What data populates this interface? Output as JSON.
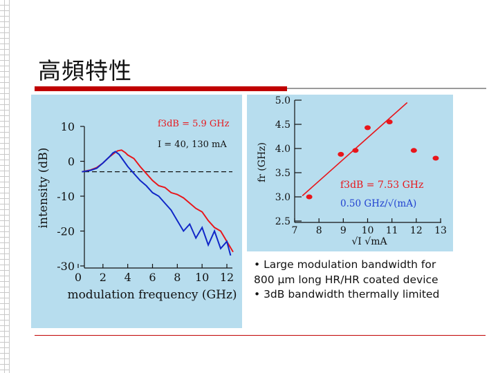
{
  "slide": {
    "title": "高頻特性",
    "bullets": [
      "• Large modulation bandwidth for 800 μm long HR/HR coated device",
      "• 3dB bandwidth thermally limited"
    ]
  },
  "colors": {
    "red_line": "#e8161b",
    "blue_line": "#1027c7",
    "panel_bg": "#b7ddee",
    "annotation_red": "#e8161b",
    "annotation_blue": "#2040d0"
  },
  "chart_data": [
    {
      "type": "line",
      "title": "",
      "xlabel": "modulation frequency (GHz)",
      "ylabel": "intensity (dB)",
      "xlim": [
        0,
        13
      ],
      "ylim": [
        -30,
        12
      ],
      "x_ticks": [
        "0",
        "2",
        "4",
        "6",
        "8",
        "10",
        "12"
      ],
      "y_ticks": [
        "10",
        "0",
        "-10",
        "-20",
        "-30"
      ],
      "annotations": {
        "f3db": "f3dB = 5.9 GHz",
        "current": "I = 40, 130 mA"
      },
      "reference_line": {
        "y": -3,
        "style": "dashed"
      },
      "series": [
        {
          "name": "130 mA",
          "color": "red",
          "x": [
            0.3,
            1,
            1.5,
            2,
            2.5,
            3,
            3.2,
            3.5,
            3.8,
            4,
            4.5,
            5,
            5.5,
            6,
            6.5,
            7,
            7.5,
            8,
            8.5,
            9,
            9.5,
            10,
            10.5,
            11,
            11.5,
            12,
            12.5
          ],
          "y": [
            -3,
            -2.5,
            -1.8,
            -0.5,
            1.2,
            2.6,
            3.0,
            3.2,
            2.5,
            1.8,
            0.8,
            -1.5,
            -3.5,
            -5.5,
            -7,
            -7.5,
            -9,
            -9.5,
            -10.5,
            -12,
            -13.5,
            -14.5,
            -17,
            -19,
            -20,
            -23,
            -26
          ]
        },
        {
          "name": "40 mA",
          "color": "blue",
          "x": [
            0.3,
            1,
            1.5,
            2,
            2.5,
            2.8,
            3,
            3.3,
            3.6,
            4,
            4.5,
            5,
            5.5,
            6,
            6.5,
            7,
            7.5,
            8,
            8.5,
            9,
            9.5,
            10,
            10.5,
            11,
            11.5,
            12,
            12.3
          ],
          "y": [
            -3,
            -2.6,
            -2,
            -0.5,
            1.2,
            2.4,
            2.8,
            2.0,
            0.5,
            -1.5,
            -3.5,
            -5.5,
            -7,
            -9,
            -10,
            -12,
            -14,
            -17,
            -20,
            -18,
            -22,
            -19,
            -24,
            -20,
            -25,
            -23,
            -27
          ]
        }
      ]
    },
    {
      "type": "scatter",
      "title": "",
      "xlabel": "√I   √mA",
      "ylabel": "fr (GHz)",
      "xlim": [
        7,
        13
      ],
      "ylim": [
        2.5,
        5.0
      ],
      "x_ticks": [
        "7",
        "8",
        "9",
        "10",
        "11",
        "12",
        "13"
      ],
      "y_ticks": [
        "5.0",
        "4.5",
        "4.0",
        "3.5",
        "3.0",
        "2.5"
      ],
      "annotations": {
        "f3db": "f3dB = 7.53 GHz",
        "slope": "0.50 GHz/√(mA)"
      },
      "points": {
        "x": [
          7.6,
          8.9,
          9.5,
          10.0,
          10.9,
          11.9,
          12.8
        ],
        "y": [
          3.0,
          3.88,
          3.96,
          4.43,
          4.55,
          3.96,
          3.8
        ]
      },
      "fit_line": {
        "x": [
          7.6,
          11.4
        ],
        "y": [
          3.05,
          4.95
        ]
      }
    }
  ]
}
